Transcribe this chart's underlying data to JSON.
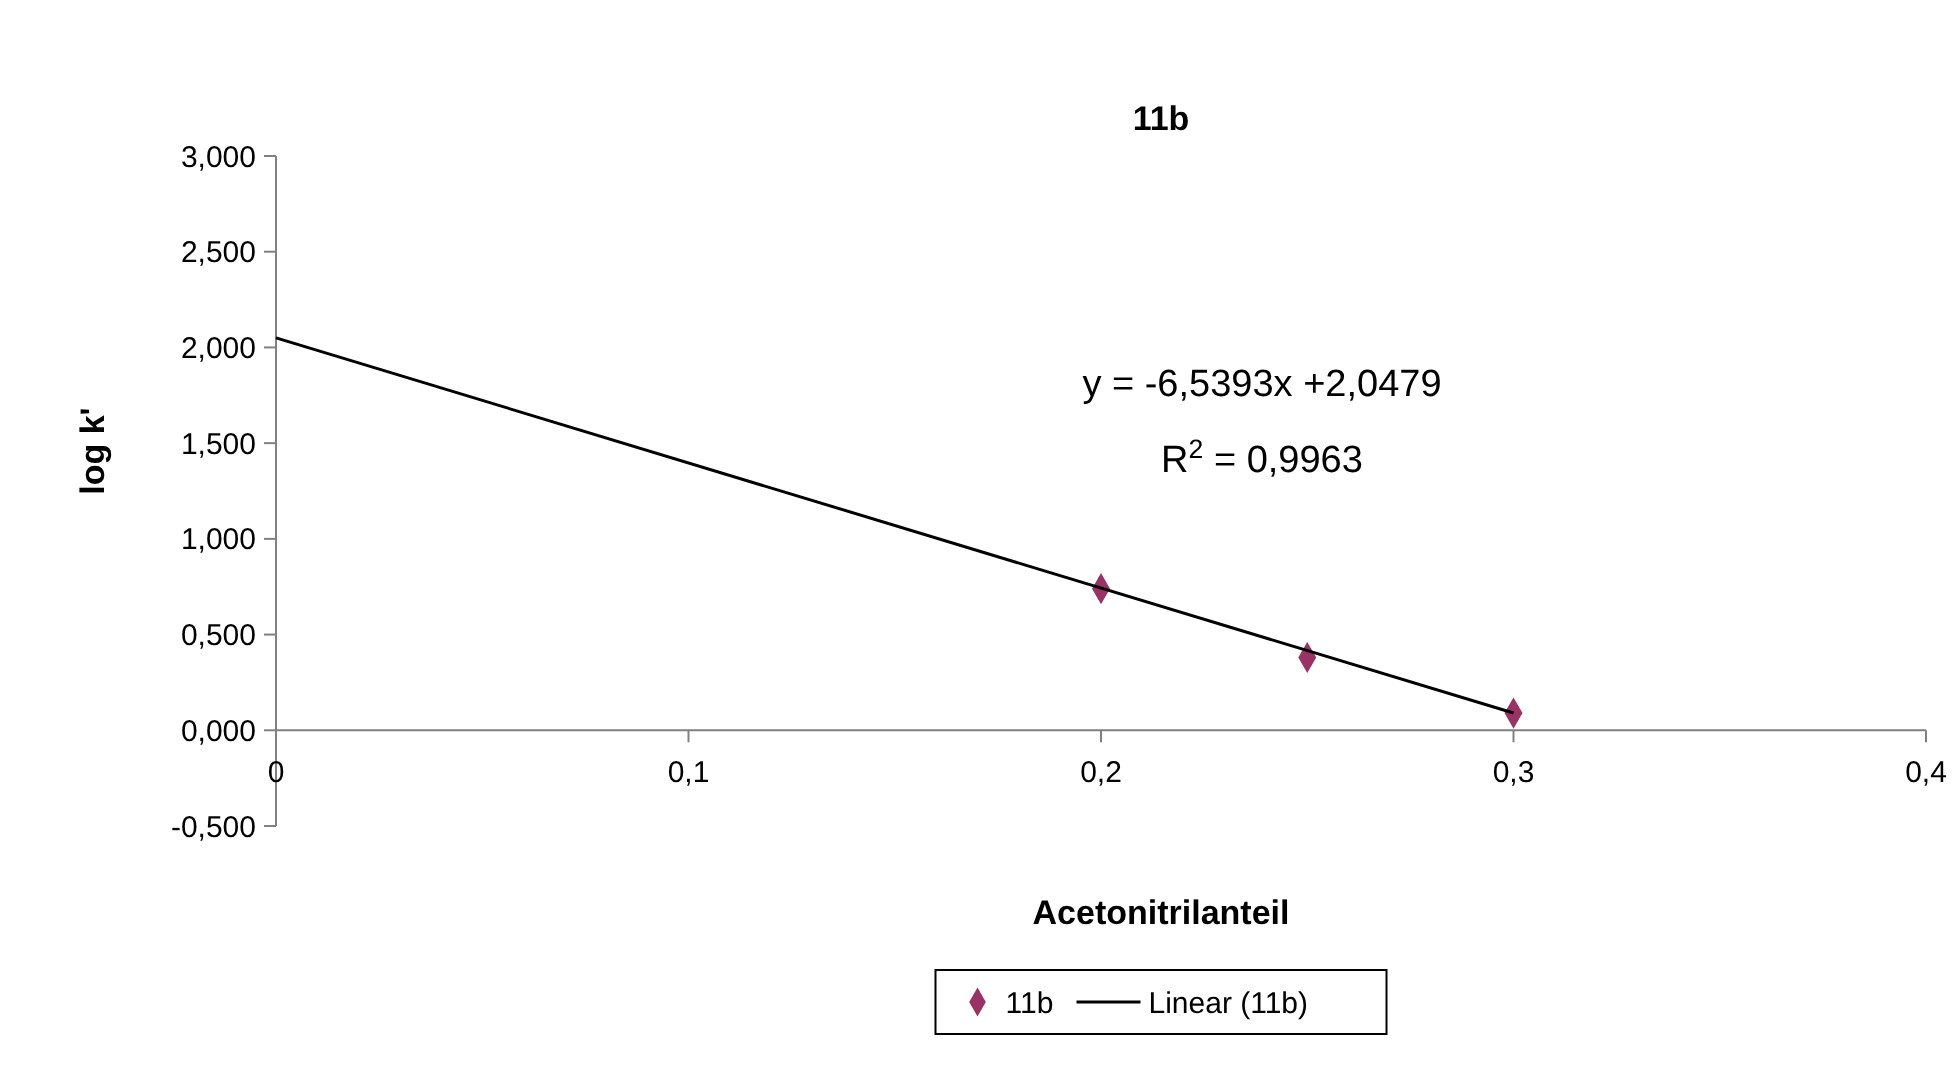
{
  "chart_data": {
    "type": "scatter",
    "title": "11b",
    "xlabel": "Acetonitrilanteil",
    "ylabel": "log k'",
    "xlim": [
      0,
      0.4
    ],
    "xticks": [
      0,
      {
        "value": 0.1,
        "label": "0,1"
      },
      {
        "value": 0.2,
        "label": "0,2"
      },
      {
        "value": 0.3,
        "label": "0,3"
      },
      {
        "value": 0.4,
        "label": "0,4"
      }
    ],
    "ylim": [
      -0.5,
      3
    ],
    "yticks": [
      {
        "value": -0.5,
        "label": "-0,500"
      },
      {
        "value": 0,
        "label": "0,000"
      },
      {
        "value": 0.5,
        "label": "0,500"
      },
      {
        "value": 1,
        "label": "1,000"
      },
      {
        "value": 1.5,
        "label": "1,500"
      },
      {
        "value": 2,
        "label": "2,000"
      },
      {
        "value": 2.5,
        "label": "2,500"
      },
      {
        "value": 3,
        "label": "3,000"
      }
    ],
    "marker": "diamond",
    "grid": false,
    "legend": "bottom",
    "series": [
      {
        "name": "11b",
        "color": "#993366",
        "x": [
          0.2,
          0.25,
          0.3
        ],
        "values": [
          0.74,
          0.38,
          0.09
        ]
      },
      {
        "name": "Linear (11b)",
        "type": "line",
        "color": "#000000",
        "marker": "none",
        "line_style": "solid",
        "x": [
          0,
          0.3
        ],
        "values": [
          2.05,
          0.09
        ]
      }
    ],
    "annotations": [
      "y = -6,5393x +2,0479",
      "R$^{2}$ = 0,9963"
    ]
  }
}
